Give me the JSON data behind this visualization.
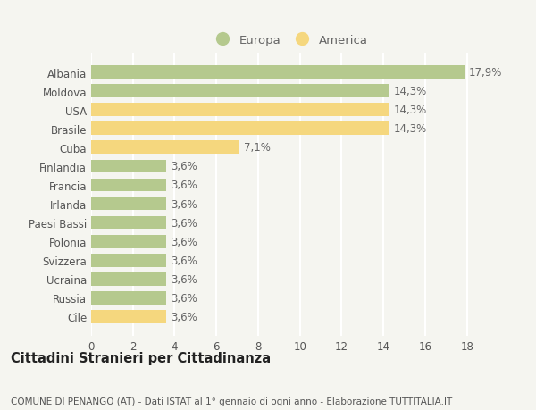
{
  "categories": [
    "Albania",
    "Moldova",
    "USA",
    "Brasile",
    "Cuba",
    "Finlandia",
    "Francia",
    "Irlanda",
    "Paesi Bassi",
    "Polonia",
    "Svizzera",
    "Ucraina",
    "Russia",
    "Cile"
  ],
  "values": [
    17.9,
    14.3,
    14.3,
    14.3,
    7.1,
    3.6,
    3.6,
    3.6,
    3.6,
    3.6,
    3.6,
    3.6,
    3.6,
    3.6
  ],
  "labels": [
    "17,9%",
    "14,3%",
    "14,3%",
    "14,3%",
    "7,1%",
    "3,6%",
    "3,6%",
    "3,6%",
    "3,6%",
    "3,6%",
    "3,6%",
    "3,6%",
    "3,6%",
    "3,6%"
  ],
  "continent": [
    "Europa",
    "Europa",
    "America",
    "America",
    "America",
    "Europa",
    "Europa",
    "Europa",
    "Europa",
    "Europa",
    "Europa",
    "Europa",
    "Europa",
    "America"
  ],
  "color_europa": "#b5c98e",
  "color_america": "#f5d77e",
  "background_color": "#f5f5f0",
  "grid_color": "#ffffff",
  "title1": "Cittadini Stranieri per Cittadinanza",
  "title2": "COMUNE DI PENANGO (AT) - Dati ISTAT al 1° gennaio di ogni anno - Elaborazione TUTTITALIA.IT",
  "xlim": [
    0,
    19
  ],
  "xticks": [
    0,
    2,
    4,
    6,
    8,
    10,
    12,
    14,
    16,
    18
  ],
  "legend_europa": "Europa",
  "legend_america": "America",
  "bar_height": 0.7,
  "label_fontsize": 8.5,
  "tick_fontsize": 8.5,
  "title1_fontsize": 10.5,
  "title2_fontsize": 7.5
}
